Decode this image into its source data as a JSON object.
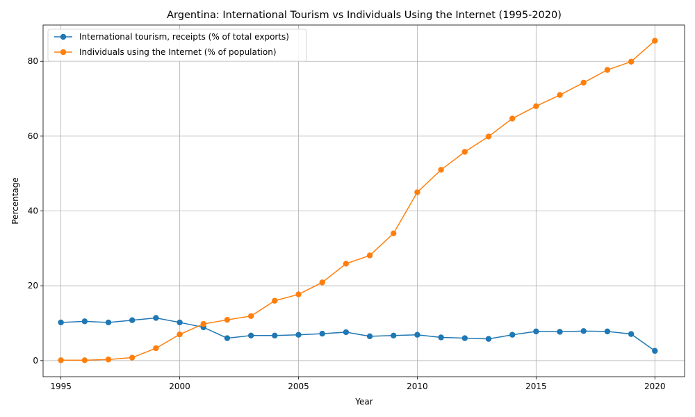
{
  "chart_data": {
    "type": "line",
    "title": "Argentina: International Tourism vs Individuals Using the Internet (1995-2020)",
    "xlabel": "Year",
    "ylabel": "Percentage",
    "xlim": [
      1994.25,
      2021.25
    ],
    "ylim": [
      -4.3,
      89.7
    ],
    "xticks": [
      1995,
      2000,
      2005,
      2010,
      2015,
      2020
    ],
    "yticks": [
      0,
      20,
      40,
      60,
      80
    ],
    "grid": true,
    "legend_position": "top-left",
    "x": [
      1995,
      1996,
      1997,
      1998,
      1999,
      2000,
      2001,
      2002,
      2003,
      2004,
      2005,
      2006,
      2007,
      2008,
      2009,
      2010,
      2011,
      2012,
      2013,
      2014,
      2015,
      2016,
      2017,
      2018,
      2019,
      2020
    ],
    "series": [
      {
        "name": "International tourism, receipts (% of total exports)",
        "color": "#1f77b4",
        "values": [
          10.2,
          10.5,
          10.2,
          10.8,
          11.4,
          10.2,
          8.9,
          6.0,
          6.7,
          6.7,
          6.9,
          7.2,
          7.6,
          6.5,
          6.7,
          6.9,
          6.2,
          6.0,
          5.8,
          6.9,
          7.8,
          7.7,
          7.9,
          7.8,
          7.1,
          2.6
        ]
      },
      {
        "name": "Individuals using the Internet (% of population)",
        "color": "#ff7f0e",
        "values": [
          0.1,
          0.1,
          0.3,
          0.8,
          3.3,
          7.0,
          9.8,
          10.9,
          11.9,
          16.0,
          17.7,
          20.9,
          25.9,
          28.1,
          34.0,
          45.0,
          51.0,
          55.8,
          59.9,
          64.7,
          68.0,
          71.0,
          74.3,
          77.7,
          79.9,
          85.5
        ]
      }
    ]
  }
}
